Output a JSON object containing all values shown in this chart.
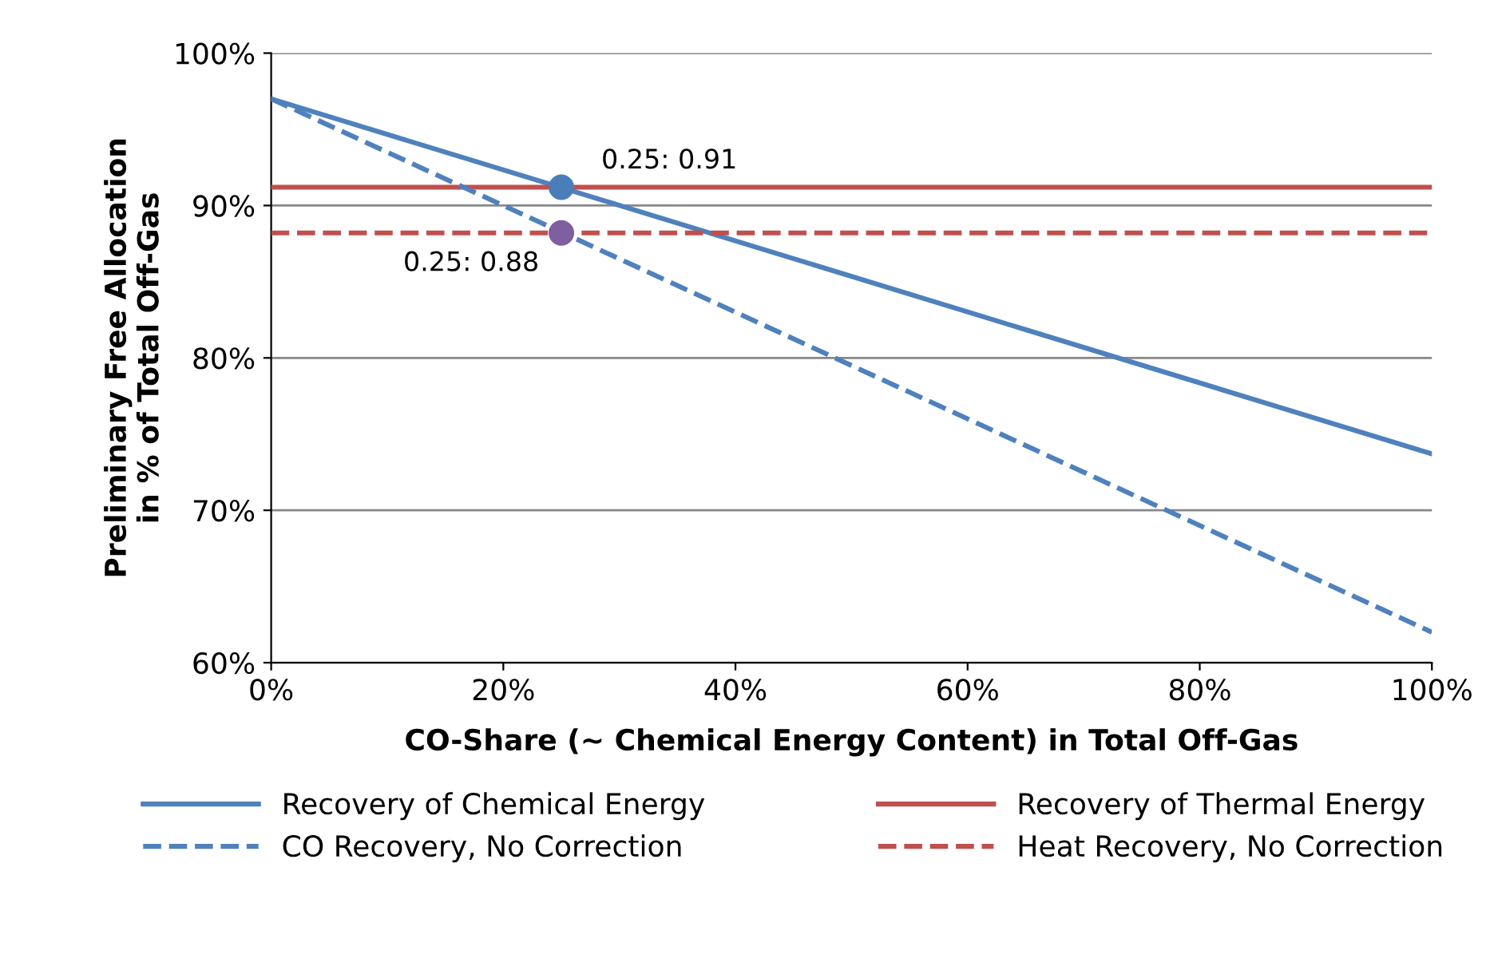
{
  "chart_data": {
    "type": "line",
    "xlabel": "CO-Share (∼ Chemical Energy Content) in Total Off-Gas",
    "ylabel": "Preliminary Free Allocation\nin % of Total Off-Gas",
    "xlim": [
      0,
      100
    ],
    "ylim": [
      60,
      100
    ],
    "xticks": [
      {
        "value": 0,
        "label": "0%"
      },
      {
        "value": 20,
        "label": "20%"
      },
      {
        "value": 40,
        "label": "40%"
      },
      {
        "value": 60,
        "label": "60%"
      },
      {
        "value": 80,
        "label": "80%"
      },
      {
        "value": 100,
        "label": "100%"
      }
    ],
    "yticks": [
      {
        "value": 60,
        "label": "60%"
      },
      {
        "value": 70,
        "label": "70%"
      },
      {
        "value": 80,
        "label": "80%"
      },
      {
        "value": 90,
        "label": "90%"
      },
      {
        "value": 100,
        "label": "100%"
      }
    ],
    "grid": "y",
    "legend": "bottom",
    "series": [
      {
        "name": "Recovery of Chemical Energy",
        "color": "#4f81bd",
        "line_style": "solid",
        "x": [
          0,
          100
        ],
        "values": [
          97,
          73.7
        ]
      },
      {
        "name": "Recovery of Thermal Energy",
        "color": "#c0504d",
        "line_style": "solid",
        "x": [
          0,
          100
        ],
        "values": [
          91.2,
          91.2
        ]
      },
      {
        "name": "CO Recovery, No Correction",
        "color": "#4f81bd",
        "line_style": "dashed",
        "x": [
          0,
          100
        ],
        "values": [
          97,
          62
        ]
      },
      {
        "name": "Heat Recovery, No Correction",
        "color": "#c0504d",
        "line_style": "dashed",
        "x": [
          0,
          100
        ],
        "values": [
          88.2,
          88.2
        ]
      },
      {
        "type": "scatter",
        "color": "#4a7ebb",
        "marker": "circle",
        "x": [
          25
        ],
        "values": [
          91.2
        ]
      },
      {
        "type": "scatter",
        "color": "#7f5f9f",
        "marker": "circle",
        "x": [
          25
        ],
        "values": [
          88.2
        ]
      }
    ],
    "annotations": [
      {
        "text": "0.25: 0.91",
        "x": 25,
        "y": 91.2
      },
      {
        "text": "0.25: 0.88",
        "x": 25,
        "y": 88.2
      }
    ]
  }
}
